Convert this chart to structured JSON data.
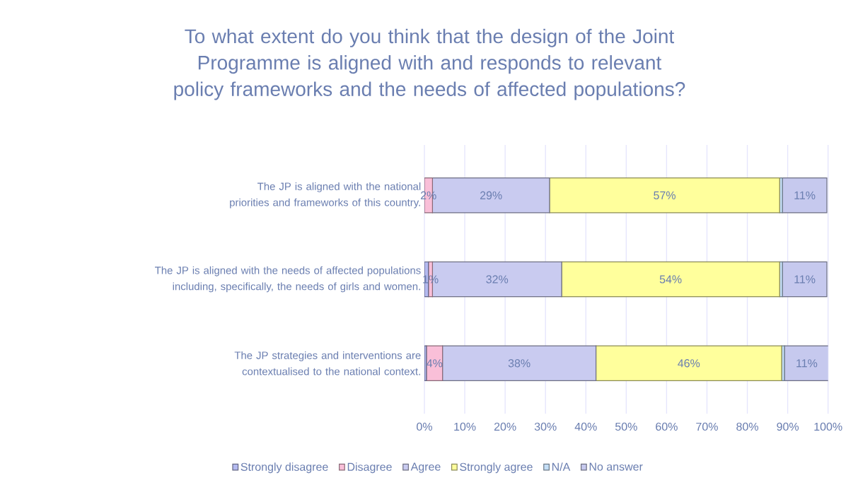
{
  "chart_data": {
    "type": "bar",
    "orientation": "horizontal",
    "stacked": true,
    "title": "To what extent do you think that the design of the Joint Programme is aligned with and responds to relevant policy frameworks and the needs of affected populations?",
    "categories": [
      "The JP is aligned with the national priorities and frameworks of this country.",
      "The JP is aligned with the needs of affected populations including, specifically, the needs of girls and women.",
      "The JP strategies and interventions are contextualised to the national context."
    ],
    "series": [
      {
        "name": "Strongly disagree",
        "color": "#b4baf0",
        "values": [
          0,
          1,
          0.5
        ],
        "value_labels": [
          null,
          null,
          null
        ]
      },
      {
        "name": "Disagree",
        "color": "#f9bfd8",
        "values": [
          2,
          1,
          4
        ],
        "value_labels": [
          "2%",
          "1%",
          "4%"
        ]
      },
      {
        "name": "Agree",
        "color": "#c9cbf0",
        "values": [
          29,
          32,
          38
        ],
        "value_labels": [
          "29%",
          "32%",
          "38%"
        ]
      },
      {
        "name": "Strongly agree",
        "color": "#ffff9c",
        "values": [
          57,
          54,
          46
        ],
        "value_labels": [
          "57%",
          "54%",
          "46%"
        ]
      },
      {
        "name": "N/A",
        "color": "#c4def6",
        "values": [
          0.7,
          0.7,
          0.7
        ],
        "value_labels": [
          null,
          null,
          null
        ]
      },
      {
        "name": "No answer",
        "color": "#c6c9ee",
        "values": [
          11,
          11,
          11
        ],
        "value_labels": [
          "11%",
          "11%",
          "11%"
        ]
      }
    ],
    "xlim": [
      0,
      100
    ],
    "xticks": [
      {
        "value": 0,
        "label": "0%"
      },
      {
        "value": 10,
        "label": "10%"
      },
      {
        "value": 20,
        "label": "20%"
      },
      {
        "value": 30,
        "label": "30%"
      },
      {
        "value": 40,
        "label": "40%"
      },
      {
        "value": 50,
        "label": "50%"
      },
      {
        "value": 60,
        "label": "60%"
      },
      {
        "value": 70,
        "label": "70%"
      },
      {
        "value": 80,
        "label": "80%"
      },
      {
        "value": 90,
        "label": "90%"
      },
      {
        "value": 100,
        "label": "100%"
      }
    ],
    "grid": "x",
    "legend": "bottom"
  }
}
